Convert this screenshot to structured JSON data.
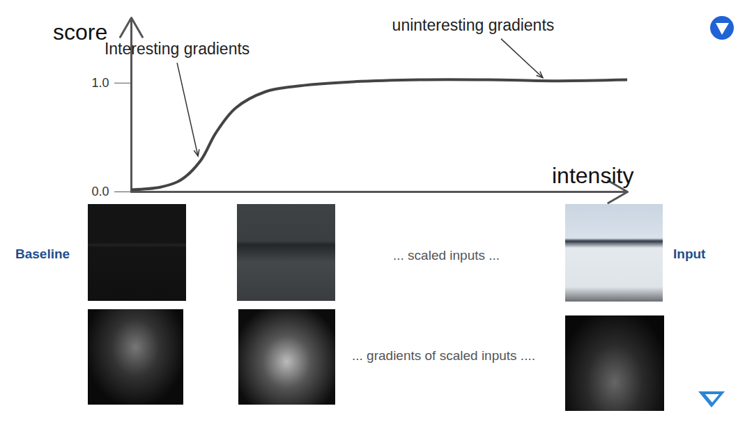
{
  "chart_data": {
    "type": "line",
    "y_label": "score",
    "x_label": "intensity",
    "x": [
      0,
      0.06,
      0.1,
      0.14,
      0.17,
      0.21,
      0.27,
      0.33,
      0.44,
      0.58,
      0.72,
      0.86,
      1.0
    ],
    "values": [
      0.02,
      0.045,
      0.11,
      0.29,
      0.54,
      0.77,
      0.92,
      0.97,
      1.01,
      1.03,
      1.03,
      1.02,
      1.03
    ],
    "color": "#444444",
    "xlim": [
      0,
      1
    ],
    "ylim": [
      0,
      1.6
    ],
    "yticks": [
      {
        "value": 0,
        "label": "0.0"
      },
      {
        "value": 1,
        "label": "1.0"
      }
    ],
    "tick_labels": "y",
    "grid": false,
    "annotations": [
      {
        "text": "Interesting gradients",
        "x": 0.135,
        "y": 0.3
      },
      {
        "text": "uninteresting gradients",
        "x": 0.83,
        "y": 1.02
      }
    ]
  },
  "panels": {
    "left_label": "Baseline",
    "right_label": "Input",
    "row1_caption": "... scaled inputs ...",
    "row2_caption": "... gradients of scaled inputs ...."
  }
}
